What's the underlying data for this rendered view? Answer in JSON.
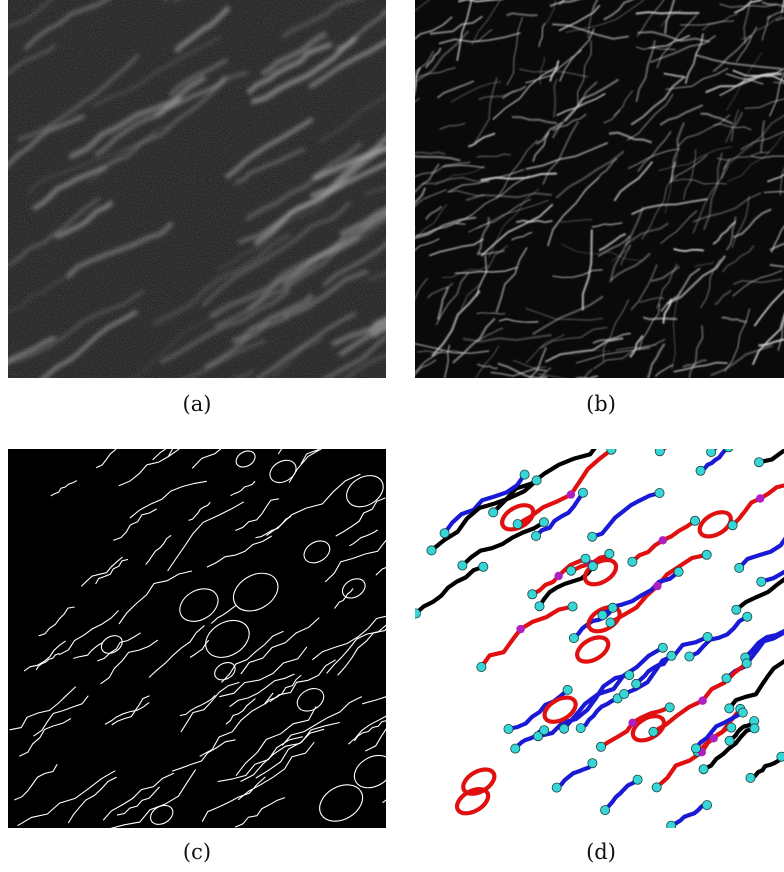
{
  "panels": [
    {
      "id": "a",
      "label": "(a)"
    },
    {
      "id": "b",
      "label": "(b)"
    },
    {
      "id": "c",
      "label": "(c)"
    },
    {
      "id": "d",
      "label": "(d)"
    }
  ],
  "colors": {
    "raw_fibers": "#c8c8c8",
    "enhanced_fibers": "#e6e6e6",
    "skeleton": "#ffffff",
    "graph_red": "#e01010",
    "graph_blue": "#1a1ad6",
    "graph_black": "#000000",
    "end_node": "#37d6d6",
    "branch_node": "#b020c0"
  }
}
